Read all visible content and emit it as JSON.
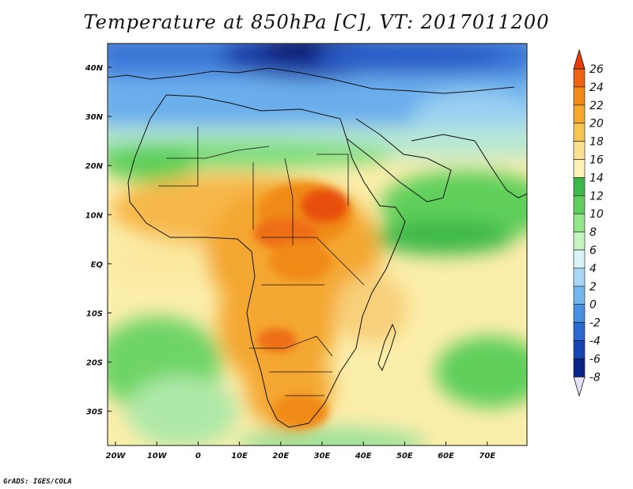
{
  "title": "Temperature at 850hPa [C], VT: 2017011200",
  "footer": "GrADS: IGES/COLA",
  "map": {
    "lon_labels": [
      "20W",
      "10W",
      "0",
      "10E",
      "20E",
      "30E",
      "40E",
      "50E",
      "60E",
      "70E"
    ],
    "lat_labels": [
      "40N",
      "30N",
      "20N",
      "10N",
      "EQ",
      "10S",
      "20S",
      "30S"
    ]
  },
  "colorbar": {
    "levels": [
      "26",
      "24",
      "22",
      "20",
      "18",
      "16",
      "14",
      "12",
      "10",
      "8",
      "6",
      "4",
      "2",
      "0",
      "-2",
      "-4",
      "-6",
      "-8"
    ],
    "colors": [
      "#e83c0a",
      "#f06210",
      "#f28a14",
      "#f5a82a",
      "#f7c452",
      "#fde08e",
      "#fdf2b4",
      "#3cb84a",
      "#5fcf5a",
      "#93e68a",
      "#c4f4c0",
      "#d8f2f8",
      "#a8d8f4",
      "#72b6ee",
      "#4690e2",
      "#2a68d2",
      "#1646b4",
      "#0a2488",
      "#0e1258"
    ],
    "over_color": "#e83c0a",
    "under_color": "#e4e2f8"
  }
}
